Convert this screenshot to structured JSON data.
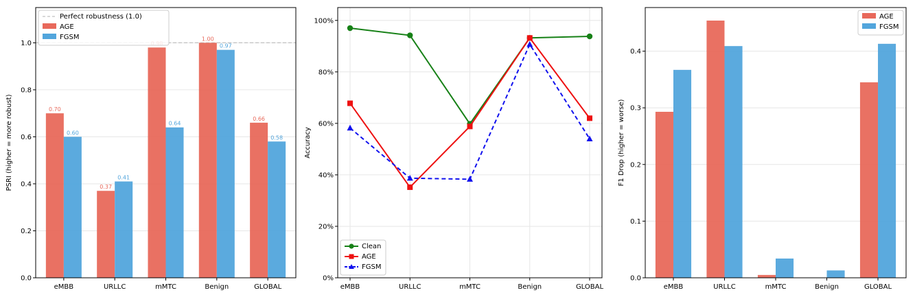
{
  "colors": {
    "age": "#e8695b",
    "fgsm": "#52a5dc",
    "clean": "#178117",
    "age_line": "#ee1111",
    "fgsm_line": "#1111ee",
    "perfect_line": "#c0c0c0",
    "grid": "#e6e6e6",
    "axis": "#000000"
  },
  "chart_data": [
    {
      "type": "bar",
      "categories": [
        "eMBB",
        "URLLC",
        "mMTC",
        "Benign",
        "GLOBAL"
      ],
      "series": [
        {
          "name": "AGE",
          "values": [
            0.7,
            0.37,
            0.98,
            1.0,
            0.66
          ],
          "labels": [
            "0.70",
            "0.37",
            "0.98",
            "1.00",
            "0.66"
          ]
        },
        {
          "name": "FGSM",
          "values": [
            0.6,
            0.41,
            0.64,
            0.97,
            0.58
          ],
          "labels": [
            "0.60",
            "0.41",
            "0.64",
            "0.97",
            "0.58"
          ]
        }
      ],
      "reference_line": {
        "value": 1.0,
        "label": "Perfect robustness (1.0)"
      },
      "ylabel": "PSRI (higher = more robust)",
      "ylim": [
        0,
        1.15
      ],
      "yticks": [
        0.0,
        0.2,
        0.4,
        0.6,
        0.8,
        1.0
      ],
      "ytick_labels": [
        "0.0",
        "0.2",
        "0.4",
        "0.6",
        "0.8",
        "1.0"
      ],
      "legend": "top-left",
      "grid": true
    },
    {
      "type": "line",
      "categories": [
        "eMBB",
        "URLLC",
        "mMTC",
        "Benign",
        "GLOBAL"
      ],
      "series": [
        {
          "name": "Clean",
          "values": [
            0.97,
            0.942,
            0.598,
            0.932,
            0.938
          ],
          "marker": "circle",
          "style": "solid"
        },
        {
          "name": "AGE",
          "values": [
            0.678,
            0.352,
            0.588,
            0.932,
            0.62
          ],
          "marker": "square",
          "style": "solid"
        },
        {
          "name": "FGSM",
          "values": [
            0.582,
            0.387,
            0.383,
            0.907,
            0.54
          ],
          "marker": "triangle",
          "style": "dashed"
        }
      ],
      "ylabel": "Accuracy",
      "ylim": [
        0,
        1.05
      ],
      "yticks": [
        0,
        0.2,
        0.4,
        0.6,
        0.8,
        1.0
      ],
      "ytick_labels": [
        "0%",
        "20%",
        "40%",
        "60%",
        "80%",
        "100%"
      ],
      "legend": "bottom-left",
      "grid": true
    },
    {
      "type": "bar",
      "categories": [
        "eMBB",
        "URLLC",
        "mMTC",
        "Benign",
        "GLOBAL"
      ],
      "series": [
        {
          "name": "AGE",
          "values": [
            0.293,
            0.454,
            0.005,
            0.0,
            0.345
          ]
        },
        {
          "name": "FGSM",
          "values": [
            0.367,
            0.409,
            0.034,
            0.013,
            0.413
          ]
        }
      ],
      "ylabel": "F1 Drop (higher = worse)",
      "ylim": [
        0,
        0.477
      ],
      "yticks": [
        0.0,
        0.1,
        0.2,
        0.3,
        0.4
      ],
      "ytick_labels": [
        "0.0",
        "0.1",
        "0.2",
        "0.3",
        "0.4"
      ],
      "legend": "top-right",
      "grid": true
    }
  ]
}
